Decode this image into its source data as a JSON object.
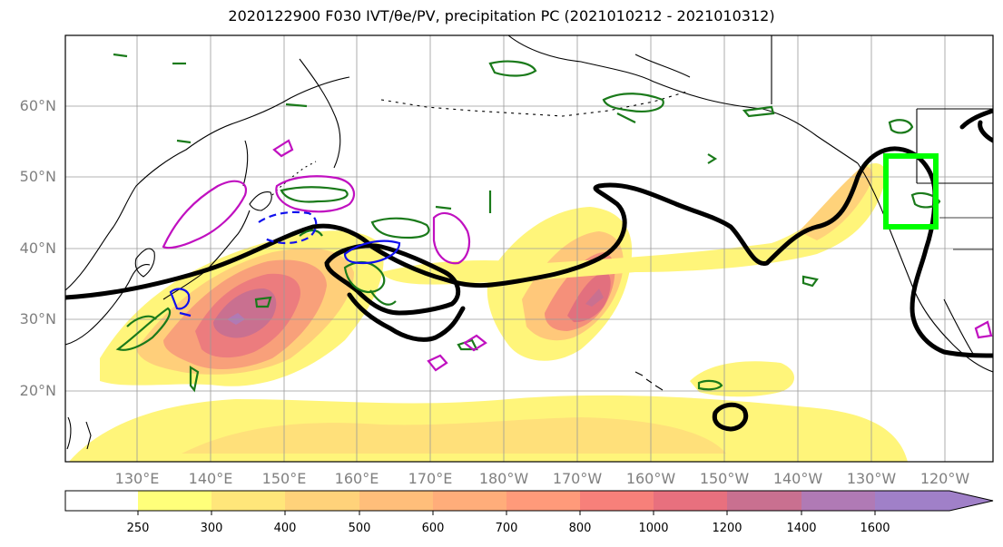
{
  "title": "2020122900 F030 IVT/θe/PV, precipitation PC (2021010212 - 2021010312)",
  "map": {
    "lat_labels": [
      "60°N",
      "50°N",
      "40°N",
      "30°N",
      "20°N"
    ],
    "lon_labels": [
      "130°E",
      "140°E",
      "150°E",
      "160°E",
      "170°E",
      "180°W",
      "170°W",
      "160°W",
      "150°W",
      "140°W",
      "130°W",
      "120°W"
    ],
    "colors": {
      "ivt_fill_low": "#fff57a",
      "ivt_fill_high": "#e86a7a",
      "ivt_fill_peak": "#b080c0",
      "theta_e_contour": "#000000",
      "pv_positive": "#1a7a1a",
      "pv_negative": "#1010ee",
      "pv_extra": "#c010c0",
      "precip_box": "#00ff00"
    }
  },
  "colorbar": {
    "ticks": [
      "250",
      "300",
      "400",
      "500",
      "600",
      "700",
      "800",
      "1000",
      "1200",
      "1400",
      "1600"
    ],
    "colors": [
      "#ffffff",
      "#ffff7a",
      "#ffe67a",
      "#ffd27a",
      "#ffbe7a",
      "#ffad7a",
      "#ff9a7a",
      "#f7807a",
      "#e8707e",
      "#c97090",
      "#b07ab5",
      "#a080c8"
    ]
  }
}
